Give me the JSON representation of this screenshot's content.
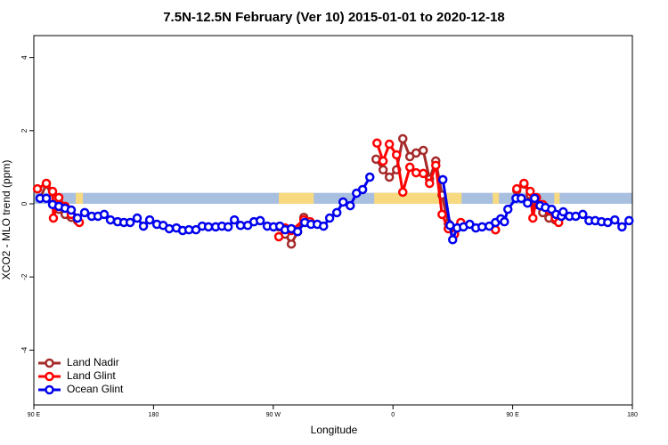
{
  "chart_data": {
    "type": "line",
    "title": "7.5N-12.5N February (Ver 10)   2015-01-01 to 2020-12-18",
    "xlabel": "Longitude",
    "ylabel": "XCO2 - MLO trend (ppm)",
    "xlim": [
      90,
      540
    ],
    "ylim": [
      -5.5,
      4.6
    ],
    "xticks": [
      {
        "value": 90,
        "label": "90 E"
      },
      {
        "value": 180,
        "label": "180"
      },
      {
        "value": 270,
        "label": "90 W"
      },
      {
        "value": 360,
        "label": "0"
      },
      {
        "value": 450,
        "label": "90 E"
      },
      {
        "value": 540,
        "label": "180"
      }
    ],
    "yticks": [
      -4,
      -2,
      0,
      2,
      4
    ],
    "legend": "bottom-left",
    "band": {
      "ylim": [
        0,
        0.3
      ],
      "ocean_color": "#a9bfe0",
      "land_color": "#f7d980",
      "land": [
        [
          121.5,
          126.9
        ],
        [
          274.2,
          300.4
        ],
        [
          345.9,
          411.6
        ],
        [
          435.0,
          439.7
        ],
        [
          481.3,
          485.3
        ]
      ]
    },
    "series": [
      {
        "name": "Land Nadir",
        "color": "#a52a2a",
        "x": [
          94.7,
          99.4,
          104.1,
          108.8,
          113.5,
          118.1,
          122.8,
          200,
          274.2,
          278.9,
          283.6,
          288.3,
          293.0,
          297.7,
          360,
          347.3,
          352.6,
          357.3,
          362.7,
          367.4,
          372.7,
          377.4,
          382.8,
          387.5,
          392.2,
          396.9,
          401.6,
          406.3,
          411.0,
          420,
          437.1,
          445,
          453.1,
          458.5,
          463.2,
          467.9,
          472.6,
          477.3,
          482.0
        ],
        "values": [
          0.15,
          0.54,
          0.15,
          -0.15,
          -0.29,
          -0.37,
          -0.46,
          null,
          -0.63,
          -0.83,
          -1.1,
          -0.76,
          -0.37,
          -0.54,
          null,
          1.22,
          0.93,
          0.73,
          0.93,
          1.78,
          1.29,
          1.39,
          1.46,
          0.68,
          1.17,
          0.24,
          -0.54,
          -0.73,
          -0.54,
          null,
          -0.71,
          null,
          0.37,
          0.54,
          0.24,
          -0.02,
          -0.24,
          -0.39,
          -0.44
        ]
      },
      {
        "name": "Land Glint",
        "color": "#ff0000",
        "x": [
          92.7,
          99.4,
          104.1,
          104.7,
          108.8,
          113.5,
          118.1,
          124.2,
          200,
          274.2,
          278.9,
          283.6,
          293.0,
          297.7,
          360,
          348.0,
          352.6,
          357.3,
          362.7,
          367.4,
          372.7,
          377.4,
          382.8,
          387.5,
          392.2,
          396.9,
          401.6,
          406.3,
          411.0,
          420,
          437.1,
          445,
          453.1,
          458.5,
          463.2,
          465.2,
          467.9,
          472.6,
          477.3,
          482.0,
          484.6
        ],
        "values": [
          0.41,
          0.56,
          0.34,
          -0.39,
          0.17,
          -0.07,
          -0.29,
          -0.51,
          null,
          -0.9,
          -0.66,
          -0.73,
          -0.44,
          -0.49,
          null,
          1.66,
          1.17,
          1.63,
          1.34,
          0.32,
          1.0,
          0.85,
          0.83,
          0.56,
          1.05,
          -0.29,
          -0.68,
          -0.83,
          -0.51,
          null,
          -0.71,
          null,
          0.41,
          0.56,
          0.34,
          -0.39,
          0.17,
          -0.02,
          -0.17,
          -0.39,
          -0.51
        ]
      },
      {
        "name": "Ocean Glint",
        "color": "#0000ee",
        "x": [
          94.7,
          99.4,
          104.1,
          108.8,
          113.5,
          118.1,
          122.8,
          128.2,
          133.5,
          138.2,
          142.9,
          147.6,
          153.0,
          157.7,
          162.4,
          167.7,
          172.4,
          177.1,
          182.5,
          187.2,
          191.8,
          197.2,
          201.9,
          206.6,
          211.9,
          216.6,
          221.3,
          226.7,
          231.4,
          236.1,
          240.8,
          245.4,
          250.8,
          255.5,
          260.2,
          265.5,
          270.2,
          274.9,
          278.9,
          283.6,
          288.3,
          293.7,
          298.4,
          303.1,
          307.8,
          312.4,
          317.8,
          322.5,
          327.9,
          332.6,
          337.2,
          342.6,
          370,
          397.5,
          402.9,
          404.9,
          408.3,
          413.0,
          417.7,
          422.3,
          427.0,
          432.4,
          437.1,
          441.1,
          443.8,
          446.4,
          452.5,
          456.5,
          461.2,
          466.5,
          470.6,
          474.6,
          479.3,
          482.6,
          486.6,
          488.0,
          492.7,
          497.4,
          502.7,
          507.4,
          512.1,
          516.8,
          521.5,
          526.8,
          532.2,
          537.5
        ],
        "values": [
          0.15,
          0.15,
          -0.02,
          -0.07,
          -0.12,
          -0.17,
          -0.39,
          -0.24,
          -0.34,
          -0.34,
          -0.29,
          -0.44,
          -0.49,
          -0.51,
          -0.51,
          -0.39,
          -0.61,
          -0.44,
          -0.56,
          -0.59,
          -0.68,
          -0.66,
          -0.73,
          -0.71,
          -0.71,
          -0.61,
          -0.63,
          -0.63,
          -0.61,
          -0.63,
          -0.44,
          -0.59,
          -0.59,
          -0.49,
          -0.46,
          -0.61,
          -0.63,
          -0.61,
          -0.71,
          -0.68,
          -0.76,
          -0.51,
          -0.56,
          -0.56,
          -0.61,
          -0.39,
          -0.24,
          0.05,
          -0.05,
          0.29,
          0.39,
          0.73,
          null,
          0.66,
          -0.59,
          -0.98,
          -0.66,
          -0.63,
          -0.56,
          -0.66,
          -0.63,
          -0.61,
          -0.51,
          -0.41,
          -0.49,
          -0.15,
          0.15,
          0.15,
          0.02,
          0.15,
          -0.05,
          -0.1,
          -0.15,
          -0.29,
          -0.34,
          -0.22,
          -0.34,
          -0.34,
          -0.29,
          -0.46,
          -0.46,
          -0.49,
          -0.51,
          -0.44,
          -0.63,
          -0.46
        ]
      }
    ]
  }
}
